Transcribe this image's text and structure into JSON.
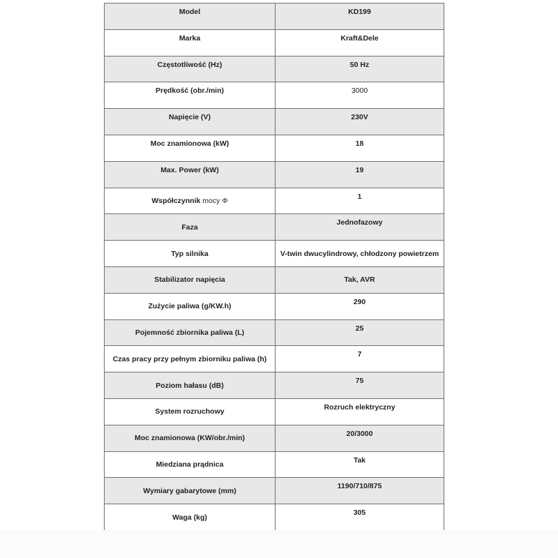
{
  "rows": [
    {
      "label": "Model",
      "value": "KD199"
    },
    {
      "label": "Marka",
      "value": "Kraft&Dele"
    },
    {
      "label": "Częstotliwość (Hz)",
      "value": "50 Hz"
    },
    {
      "label": "Prędkość (obr./min)",
      "value": "3000"
    },
    {
      "label": "Napięcie (V)",
      "value": "230V"
    },
    {
      "label": "Moc znamionowa (kW)",
      "value": "18"
    },
    {
      "label": "Max. Power (kW)",
      "value": "19"
    },
    {
      "label": "Współczynnik",
      "label_suffix": "mocy Φ",
      "value": "1"
    },
    {
      "label": "Faza",
      "value": "Jednofazowy"
    },
    {
      "label": "Typ silnika",
      "value": "V-twin dwucylindrowy, chłodzony powietrzem"
    },
    {
      "label": "Stabilizator napięcia",
      "value": "Tak, AVR"
    },
    {
      "label": "Zużycie paliwa (g/KW.h)",
      "value": "290"
    },
    {
      "label": "Pojemność zbiornika paliwa (L)",
      "value": "25"
    },
    {
      "label": "Czas pracy przy pełnym zbiorniku paliwa (h)",
      "value": "7"
    },
    {
      "label": "Poziom hałasu (dB)",
      "value": "75"
    },
    {
      "label": "System rozruchowy",
      "value": "Rozruch elektryczny"
    },
    {
      "label": "Moc znamionowa (KW/obr./min)",
      "value": "20/3000"
    },
    {
      "label": "Miedziana prądnica",
      "value": "Tak"
    },
    {
      "label": "Wymiary gabarytowe (mm)",
      "value": "1190/710/875"
    },
    {
      "label": "Waga (kg)",
      "value": "305"
    }
  ],
  "colors": {
    "shaded_row": "#e8e8e8",
    "border": "#6e6e6e"
  }
}
